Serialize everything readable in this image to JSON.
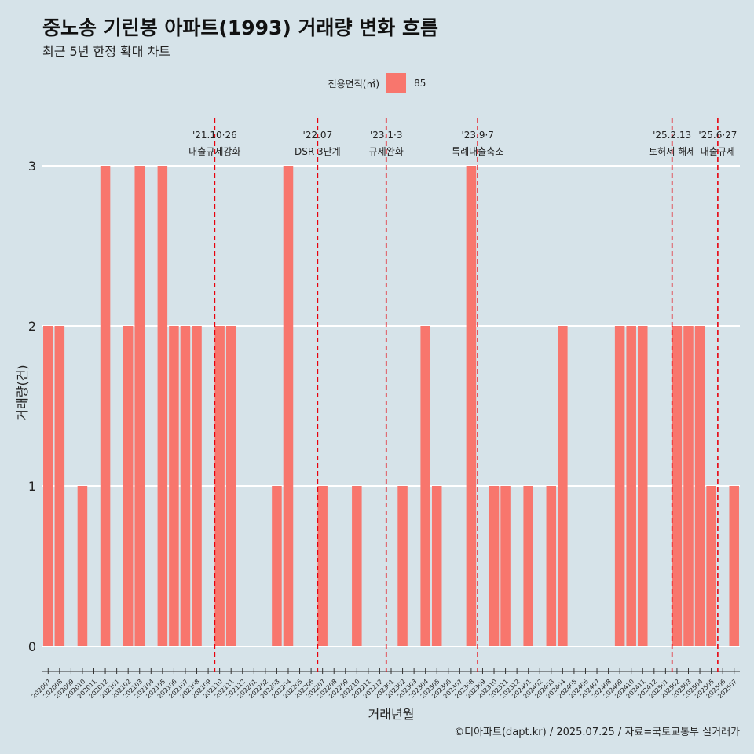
{
  "title": "중노송 기린봉 아파트(1993) 거래량 변화 흐름",
  "subtitle": "최근 5년 한정 확대 차트",
  "legend": {
    "title": "전용면적(㎡)",
    "item": "85",
    "color": "#f8766d"
  },
  "caption": "©디아파트(dapt.kr) / 2025.07.25 / 자료=국토교통부 실거래가",
  "chart_data": {
    "type": "bar",
    "xlabel": "거래년월",
    "ylabel": "거래량(건)",
    "ylim": [
      0,
      3
    ],
    "yticks": [
      0,
      1,
      2,
      3
    ],
    "grid": true,
    "legend_position": "top",
    "categories": [
      "202007",
      "202008",
      "202009",
      "202010",
      "202011",
      "202012",
      "202101",
      "202102",
      "202103",
      "202104",
      "202105",
      "202106",
      "202107",
      "202108",
      "202109",
      "202110",
      "202111",
      "202112",
      "202201",
      "202202",
      "202203",
      "202204",
      "202205",
      "202206",
      "202207",
      "202208",
      "202209",
      "202210",
      "202211",
      "202212",
      "202301",
      "202302",
      "202303",
      "202304",
      "202305",
      "202306",
      "202307",
      "202308",
      "202309",
      "202310",
      "202311",
      "202312",
      "202401",
      "202402",
      "202403",
      "202404",
      "202405",
      "202406",
      "202407",
      "202408",
      "202409",
      "202410",
      "202411",
      "202412",
      "202501",
      "202502",
      "202503",
      "202504",
      "202505",
      "202506",
      "202507"
    ],
    "series": [
      {
        "name": "85",
        "color": "#f8766d",
        "values": [
          2,
          2,
          0,
          1,
          0,
          3,
          0,
          2,
          3,
          0,
          3,
          2,
          2,
          2,
          0,
          2,
          2,
          0,
          0,
          0,
          1,
          3,
          0,
          0,
          1,
          0,
          0,
          1,
          0,
          0,
          0,
          1,
          0,
          2,
          1,
          0,
          0,
          3,
          0,
          1,
          1,
          0,
          1,
          0,
          1,
          2,
          0,
          0,
          0,
          0,
          2,
          2,
          2,
          0,
          0,
          2,
          2,
          2,
          1,
          0,
          1
        ]
      }
    ],
    "annotations": [
      {
        "date": "202110",
        "line1": "'21.10·26",
        "line2": "대출규제강화"
      },
      {
        "date": "202207",
        "line1": "'22.07",
        "line2": "DSR 3단계"
      },
      {
        "date": "202301",
        "line1": "'23.1·3",
        "line2": "규제완화"
      },
      {
        "date": "202309",
        "line1": "'23.9·7",
        "line2": "특례대출축소"
      },
      {
        "date": "202502",
        "line1": "'25.2.13",
        "line2": "토허제 해제"
      },
      {
        "date": "202506",
        "line1": "'25.6·27",
        "line2": "대출규제"
      }
    ]
  }
}
